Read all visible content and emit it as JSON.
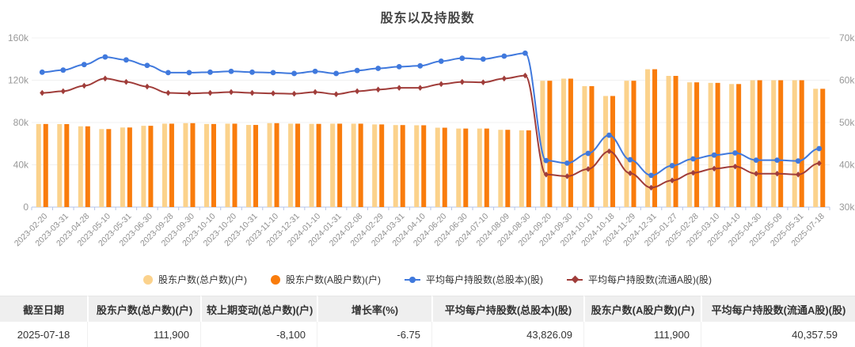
{
  "title": "股东以及持股数",
  "chart_data": {
    "type": "bar",
    "subtype": "bar-line-combo",
    "title": "股东以及持股数",
    "grid": true,
    "legend_position": "bottom",
    "categories": [
      "2023-02-20",
      "2023-03-31",
      "2023-04-28",
      "2023-05-10",
      "2023-05-31",
      "2023-06-30",
      "2023-09-28",
      "2023-09-30",
      "2023-10-10",
      "2023-10-20",
      "2023-10-31",
      "2023-11-10",
      "2023-12-31",
      "2024-01-10",
      "2024-01-31",
      "2024-02-08",
      "2024-02-29",
      "2024-03-31",
      "2024-04-10",
      "2024-06-20",
      "2024-06-30",
      "2024-07-10",
      "2024-08-09",
      "2024-08-30",
      "2024-09-20",
      "2024-09-30",
      "2024-10-10",
      "2024-10-18",
      "2024-11-29",
      "2024-12-31",
      "2025-01-27",
      "2025-02-28",
      "2025-03-10",
      "2025-04-10",
      "2025-04-30",
      "2025-05-09",
      "2025-05-31",
      "2025-07-18"
    ],
    "left_axis": {
      "min": 0,
      "max": 160000,
      "ticks": [
        "160k",
        "120k",
        "80k",
        "40k",
        "0"
      ]
    },
    "right_axis": {
      "min": 30000,
      "max": 70000,
      "ticks": [
        "70k",
        "60k",
        "50k",
        "40k",
        "30k"
      ]
    },
    "series": [
      {
        "name": "股东户数(总户数)(户)",
        "type": "bar",
        "axis": "left",
        "color": "#fbd28c",
        "symbol": "circle",
        "values": [
          78600,
          78500,
          76400,
          73800,
          75300,
          76900,
          78900,
          79400,
          78600,
          78900,
          77700,
          79400,
          78900,
          78700,
          78900,
          78900,
          78200,
          77600,
          77400,
          75100,
          74300,
          74300,
          73100,
          72600,
          119500,
          121500,
          114400,
          105100,
          119500,
          130400,
          124100,
          118000,
          117500,
          116400,
          120000,
          120000,
          120000,
          111900
        ]
      },
      {
        "name": "股东户数(A股户数)(户)",
        "type": "bar",
        "axis": "left",
        "color": "#f97c0c",
        "symbol": "circle",
        "values": [
          78600,
          78500,
          76400,
          73800,
          75300,
          76900,
          78900,
          79400,
          78600,
          78900,
          77700,
          79400,
          78900,
          78700,
          78900,
          78900,
          78200,
          77600,
          77400,
          75100,
          74300,
          74300,
          73100,
          72600,
          119500,
          121500,
          114400,
          105100,
          119500,
          130400,
          124100,
          118000,
          117500,
          116400,
          120000,
          120000,
          120000,
          111900
        ]
      },
      {
        "name": "平均每户持股数(总股本)(股)",
        "type": "line",
        "axis": "right",
        "color": "#4079dd",
        "symbol": "circle",
        "values": [
          61900,
          62400,
          63700,
          65500,
          64800,
          63500,
          61800,
          61800,
          61900,
          62100,
          61900,
          61800,
          61600,
          62100,
          61600,
          62300,
          62800,
          63200,
          63400,
          64500,
          65200,
          65000,
          65700,
          66400,
          41000,
          40400,
          42700,
          47000,
          41200,
          37500,
          39800,
          41400,
          42300,
          42800,
          41100,
          41100,
          40900,
          43826.09
        ]
      },
      {
        "name": "平均每户持股数(流通A股)(股)",
        "type": "line",
        "axis": "right",
        "color": "#a03d3a",
        "symbol": "diamond",
        "values": [
          57000,
          57400,
          58700,
          60400,
          59600,
          58500,
          57000,
          56900,
          57000,
          57200,
          57000,
          56900,
          56800,
          57200,
          56700,
          57400,
          57800,
          58200,
          58200,
          59100,
          59600,
          59500,
          60400,
          61100,
          37700,
          37300,
          39000,
          43200,
          38000,
          34600,
          36300,
          38100,
          39100,
          39600,
          37900,
          37900,
          37700,
          40357.59
        ]
      }
    ],
    "colors": {
      "axis_line": "#b6c4e7",
      "gridline": "#f0f0f0",
      "tick_label": "#999999",
      "x_label": "#8e8e8e"
    }
  },
  "table": {
    "headers": [
      "截至日期",
      "股东户数(总户数)(户)",
      "较上期变动(总户数)(户)",
      "增长率(%)",
      "平均每户持股数(总股本)(股)",
      "股东户数(A股户数)(户)",
      "平均每户持股数(流通A股)(股)"
    ],
    "rows": [
      [
        "2025-07-18",
        "111,900",
        "-8,100",
        "-6.75",
        "43,826.09",
        "111,900",
        "40,357.59"
      ]
    ]
  }
}
